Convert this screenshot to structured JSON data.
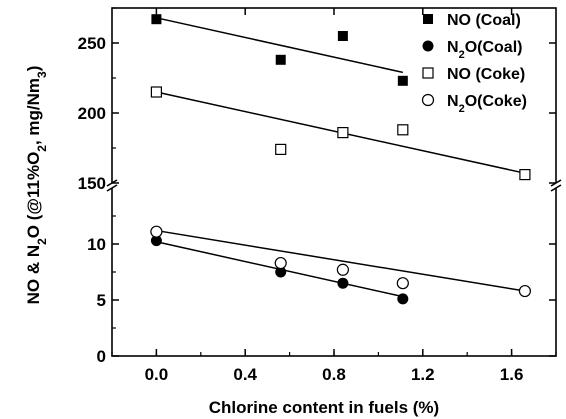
{
  "chart_data": {
    "type": "scatter",
    "xlabel": "Chlorine content in fuels (%)",
    "ylabel_parts": [
      "NO & N",
      "2",
      "O (@11%O",
      "2",
      ", mg/Nm",
      "3",
      ")"
    ],
    "xlim": [
      -0.2,
      1.8
    ],
    "x_ticks": [
      "0.0",
      "0.4",
      "0.8",
      "1.2",
      "1.6"
    ],
    "x_tick_values": [
      0.0,
      0.4,
      0.8,
      1.2,
      1.6
    ],
    "upper_panel": {
      "ylim": [
        150,
        275
      ],
      "y_ticks": [
        "150",
        "200",
        "250"
      ],
      "y_tick_values": [
        150,
        200,
        250
      ]
    },
    "lower_panel": {
      "ylim": [
        0,
        15
      ],
      "y_ticks": [
        "0",
        "5",
        "10"
      ],
      "y_tick_values": [
        0,
        5,
        10
      ]
    },
    "axis_break": true,
    "legend_position": "top-right",
    "series": [
      {
        "name_parts": [
          "NO  (Coal)"
        ],
        "marker": "filled-square",
        "panel": "upper",
        "x": [
          0.0,
          0.56,
          0.84,
          1.11
        ],
        "y": [
          267,
          238,
          255,
          223
        ],
        "fit": [
          [
            0.0,
            268
          ],
          [
            1.11,
            229
          ]
        ]
      },
      {
        "name_parts": [
          "N",
          "2",
          "O(Coal)"
        ],
        "marker": "filled-circle",
        "panel": "lower",
        "x": [
          0.0,
          0.56,
          0.84,
          1.11
        ],
        "y": [
          10.3,
          7.5,
          6.5,
          5.1
        ],
        "fit": [
          [
            0.0,
            10.2
          ],
          [
            1.11,
            5.3
          ]
        ]
      },
      {
        "name_parts": [
          "NO  (Coke)"
        ],
        "marker": "open-square",
        "panel": "upper",
        "x": [
          0.0,
          0.56,
          0.84,
          1.11,
          1.66
        ],
        "y": [
          215,
          174,
          186,
          188,
          156
        ],
        "fit": [
          [
            0.0,
            215
          ],
          [
            1.66,
            157
          ]
        ]
      },
      {
        "name_parts": [
          "N",
          "2",
          "O(Coke)"
        ],
        "marker": "open-circle",
        "panel": "lower",
        "x": [
          0.0,
          0.56,
          0.84,
          1.11,
          1.66
        ],
        "y": [
          11.1,
          8.3,
          7.7,
          6.5,
          5.8
        ],
        "fit": [
          [
            0.0,
            11.2
          ],
          [
            1.66,
            5.8
          ]
        ]
      }
    ]
  }
}
